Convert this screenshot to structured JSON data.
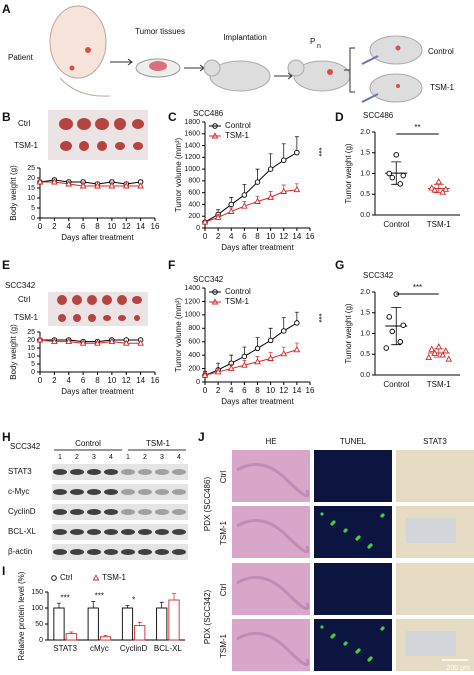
{
  "panel_labels": [
    "A",
    "B",
    "C",
    "D",
    "E",
    "F",
    "G",
    "H",
    "I",
    "J"
  ],
  "schematic": {
    "patient": "Patient",
    "tissues": "Tumor tissues",
    "implantation": "Implantation",
    "passage": {
      "text": "P",
      "subscript": "n"
    },
    "groups": [
      "Control",
      "TSM-1"
    ]
  },
  "tumor_photos": [
    {
      "rows": [
        "Ctrl",
        "TSM-1"
      ]
    },
    {
      "title": "SCC342",
      "rows": [
        "Ctrl",
        "TSM-1"
      ]
    }
  ],
  "chart_data": [
    {
      "type": "line",
      "x": [
        0,
        2,
        4,
        6,
        8,
        10,
        12,
        14
      ],
      "series": [
        {
          "color": "#000000",
          "marker": "circle",
          "values": [
            18,
            19,
            18,
            18,
            17,
            18,
            17,
            18
          ],
          "errors": [
            1,
            1,
            1,
            1,
            1,
            1,
            1,
            1
          ]
        },
        {
          "color": "#d62728",
          "marker": "triangle",
          "values": [
            18,
            18,
            17,
            16,
            16,
            16,
            16,
            16
          ],
          "errors": [
            1,
            1,
            1,
            2,
            2,
            2,
            2,
            1
          ]
        }
      ],
      "xlim": [
        0,
        16
      ],
      "xticks": [
        0,
        2,
        4,
        6,
        8,
        10,
        12,
        14,
        16
      ],
      "ylim": [
        0,
        25
      ],
      "yticks": [
        0,
        5,
        10,
        15,
        20,
        25
      ],
      "xlabel": "Days after treatment",
      "ylabel": "Body weight (g)"
    },
    {
      "type": "line",
      "title": "SCC486",
      "x": [
        0,
        2,
        4,
        6,
        8,
        10,
        12,
        14
      ],
      "series": [
        {
          "name": "Control",
          "color": "#000000",
          "marker": "circle",
          "values": [
            100,
            230,
            400,
            560,
            780,
            1000,
            1150,
            1280
          ],
          "errors": [
            30,
            80,
            120,
            180,
            220,
            260,
            280,
            270
          ]
        },
        {
          "name": "TSM-1",
          "color": "#d62728",
          "marker": "triangle",
          "values": [
            100,
            180,
            280,
            370,
            450,
            520,
            620,
            650
          ],
          "errors": [
            20,
            50,
            60,
            80,
            90,
            100,
            110,
            100
          ]
        }
      ],
      "xlim": [
        0,
        16
      ],
      "xticks": [
        0,
        2,
        4,
        6,
        8,
        10,
        12,
        14,
        16
      ],
      "ylim": [
        0,
        1800
      ],
      "yticks": [
        0,
        200,
        400,
        600,
        800,
        1000,
        1200,
        1400,
        1600,
        1800
      ],
      "xlabel": "Days after treatment",
      "ylabel": "Tumor volume (mm³)",
      "annotation": "***"
    },
    {
      "type": "scatter",
      "title": "SCC486",
      "categories": [
        "Control",
        "TSM-1"
      ],
      "series": [
        {
          "color": "#000000",
          "marker": "circle",
          "values": [
            1.45,
            1.0,
            0.95,
            0.9,
            0.75
          ],
          "mean": 1.01,
          "sd": 0.27
        },
        {
          "color": "#d62728",
          "marker": "triangle",
          "values": [
            0.8,
            0.65,
            0.62,
            0.6,
            0.55
          ],
          "mean": 0.64,
          "sd": 0.1
        }
      ],
      "ylim": [
        0,
        2
      ],
      "yticks": [
        {
          "value": 0,
          "label": "0.0"
        },
        0.5,
        {
          "value": 1,
          "label": "1.0"
        },
        1.5,
        {
          "value": 2,
          "label": "2.0"
        }
      ],
      "ylabel": "Tumor weight (g)",
      "annotation": "**"
    },
    {
      "type": "line",
      "x": [
        0,
        2,
        4,
        6,
        8,
        10,
        12,
        14
      ],
      "series": [
        {
          "color": "#000000",
          "marker": "circle",
          "values": [
            20,
            20,
            20,
            19,
            19,
            20,
            20,
            20
          ],
          "errors": [
            1,
            1,
            1,
            1,
            1,
            1,
            1,
            1
          ]
        },
        {
          "color": "#d62728",
          "marker": "triangle",
          "values": [
            20,
            19,
            19,
            18,
            18,
            19,
            18,
            18
          ],
          "errors": [
            1,
            1,
            1,
            1,
            1,
            1,
            1,
            1
          ]
        }
      ],
      "xlim": [
        0,
        16
      ],
      "xticks": [
        0,
        2,
        4,
        6,
        8,
        10,
        12,
        14,
        16
      ],
      "ylim": [
        0,
        25
      ],
      "yticks": [
        0,
        5,
        10,
        15,
        20,
        25
      ],
      "xlabel": "Days after treatment",
      "ylabel": "Body weight (g)"
    },
    {
      "type": "line",
      "title": "SCC342",
      "x": [
        0,
        2,
        4,
        6,
        8,
        10,
        12,
        14
      ],
      "series": [
        {
          "name": "Control",
          "color": "#000000",
          "marker": "circle",
          "values": [
            100,
            180,
            280,
            380,
            500,
            620,
            760,
            880
          ],
          "errors": [
            60,
            100,
            120,
            140,
            160,
            180,
            200,
            160
          ]
        },
        {
          "name": "TSM-1",
          "color": "#d62728",
          "marker": "triangle",
          "values": [
            100,
            150,
            200,
            250,
            300,
            350,
            420,
            480
          ],
          "errors": [
            40,
            50,
            60,
            70,
            80,
            90,
            100,
            100
          ]
        }
      ],
      "xlim": [
        0,
        16
      ],
      "xticks": [
        0,
        2,
        4,
        6,
        8,
        10,
        12,
        14,
        16
      ],
      "ylim": [
        0,
        1400
      ],
      "yticks": [
        0,
        200,
        400,
        600,
        800,
        1000,
        1200,
        1400
      ],
      "xlabel": "Days after treatment",
      "ylabel": "Tumor volume (mm³)",
      "annotation": "***"
    },
    {
      "type": "scatter",
      "title": "SCC342",
      "categories": [
        "Control",
        "TSM-1"
      ],
      "series": [
        {
          "color": "#000000",
          "marker": "circle",
          "values": [
            1.95,
            1.4,
            1.2,
            1.05,
            0.8,
            0.65
          ],
          "mean": 1.18,
          "sd": 0.45
        },
        {
          "color": "#d62728",
          "marker": "triangle",
          "values": [
            0.68,
            0.62,
            0.58,
            0.52,
            0.48,
            0.42,
            0.38
          ],
          "mean": 0.53,
          "sd": 0.1
        }
      ],
      "ylim": [
        0,
        2
      ],
      "yticks": [
        {
          "value": 0,
          "label": "0.0"
        },
        0.5,
        {
          "value": 1,
          "label": "1.0"
        },
        1.5,
        {
          "value": 2,
          "label": "2.0"
        }
      ],
      "ylabel": "Tumor weight (g)",
      "annotation": "***"
    },
    {
      "type": "bar",
      "categories": [
        "STAT3",
        "cMyc",
        "CyclinD",
        "BCL-XL"
      ],
      "series": [
        {
          "name": "Ctrl",
          "color": "#000000",
          "marker": "circle",
          "values": [
            100,
            100,
            100,
            100
          ],
          "errors": [
            15,
            20,
            8,
            18
          ]
        },
        {
          "name": "TSM-1",
          "color": "#d62728",
          "marker": "triangle",
          "values": [
            20,
            10,
            45,
            125
          ],
          "errors": [
            5,
            4,
            10,
            20
          ]
        }
      ],
      "ylim": [
        0,
        150
      ],
      "yticks": [
        0,
        50,
        100,
        150
      ],
      "ylabel": "Relative protein level (%)",
      "annotations": [
        "***",
        "***",
        "*",
        null
      ]
    }
  ],
  "blot": {
    "title": "SCC342",
    "groups": [
      "Control",
      "TSM-1"
    ],
    "lanes": [
      "1",
      "2",
      "3",
      "4",
      "1",
      "2",
      "3",
      "4"
    ],
    "rows": [
      "STAT3",
      "c-Myc",
      "CyclinD",
      "BCL-XL",
      "β-actin"
    ]
  },
  "histology": {
    "columns": [
      "HE",
      "TUNEL",
      "STAT3"
    ],
    "groups": [
      "PDX (SCC486)",
      "PDX (SCC342)"
    ],
    "rows": [
      "Ctrl",
      "TSM-1",
      "Ctrl",
      "TSM-1"
    ],
    "scale_bar": "200 μm"
  }
}
